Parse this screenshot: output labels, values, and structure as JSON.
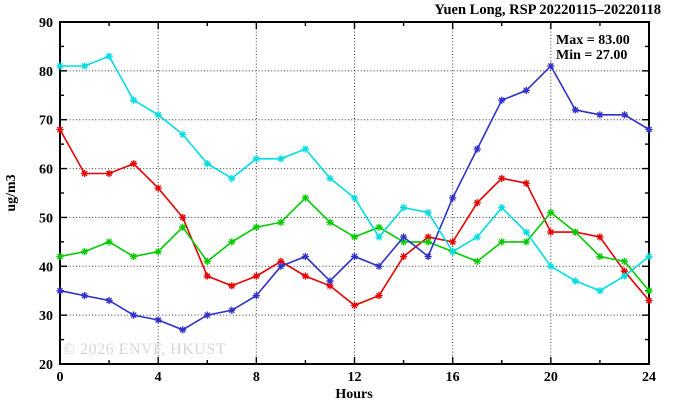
{
  "title": "Yuen Long, RSP 20220115–20220118",
  "annotations": {
    "max_label": "Max = 83.00",
    "min_label": "Min = 27.00"
  },
  "watermark": "© 2026 ENVF, HKUST",
  "chart_data": {
    "type": "line",
    "title": "Yuen Long, RSP 20220115–20220118",
    "xlabel": "Hours",
    "ylabel": "ug/m3",
    "xlim": [
      0,
      24
    ],
    "ylim": [
      20,
      90
    ],
    "x_major_ticks": [
      0,
      4,
      8,
      12,
      16,
      20,
      24
    ],
    "x_minor_ticks": [
      2,
      6,
      10,
      14,
      18,
      22
    ],
    "y_major_ticks": [
      20,
      30,
      40,
      50,
      60,
      70,
      80,
      90
    ],
    "y_minor_ticks": [
      25,
      35,
      45,
      55,
      65,
      75,
      85
    ],
    "grid": "dotted-at-major-ticks",
    "legend_position": "none",
    "marker": "asterisk",
    "x": [
      0,
      1,
      2,
      3,
      4,
      5,
      6,
      7,
      8,
      9,
      10,
      11,
      12,
      13,
      14,
      15,
      16,
      17,
      18,
      19,
      20,
      21,
      22,
      23,
      24
    ],
    "series": [
      {
        "name": "red-line",
        "color": "#e60000",
        "values": [
          68,
          59,
          59,
          61,
          56,
          50,
          38,
          36,
          38,
          41,
          38,
          36,
          32,
          34,
          42,
          46,
          45,
          53,
          58,
          57,
          47,
          47,
          46,
          39,
          33
        ]
      },
      {
        "name": "green-line",
        "color": "#00cc00",
        "values": [
          42,
          43,
          45,
          42,
          43,
          48,
          41,
          45,
          48,
          49,
          54,
          49,
          46,
          48,
          45,
          45,
          43,
          41,
          45,
          45,
          51,
          47,
          42,
          41,
          35
        ]
      },
      {
        "name": "blue-line",
        "color": "#3030cc",
        "values": [
          35,
          34,
          33,
          30,
          29,
          27,
          30,
          31,
          34,
          40,
          42,
          37,
          42,
          40,
          46,
          42,
          54,
          64,
          74,
          76,
          81,
          72,
          71,
          71,
          68
        ]
      },
      {
        "name": "cyan-line",
        "color": "#00dde0",
        "values": [
          81,
          81,
          83,
          74,
          71,
          67,
          61,
          58,
          62,
          62,
          64,
          58,
          54,
          46,
          52,
          51,
          43,
          46,
          52,
          47,
          40,
          37,
          35,
          38,
          42
        ]
      }
    ],
    "stats": {
      "max": 83.0,
      "min": 27.0
    }
  }
}
